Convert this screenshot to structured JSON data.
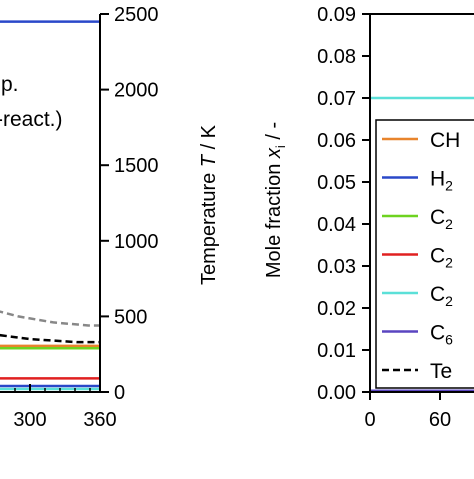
{
  "chart_data": [
    {
      "type": "line",
      "panel": "left (cropped)",
      "x_ticks": [
        "300",
        "360"
      ],
      "xlim": [
        0,
        360
      ],
      "right_ylabel_name": "Temperature",
      "right_ylabel_symbol": "T",
      "right_ylabel_unit": " / K",
      "right_ylim": [
        0,
        2500
      ],
      "right_y_ticks": [
        0,
        500,
        1000,
        1500,
        2000,
        2500
      ],
      "annotation_lines": [
        "p.",
        "-react.)"
      ],
      "series": [
        {
          "color": "#2a48c9",
          "style": "solid",
          "x": [
            0,
            360
          ],
          "y": [
            2450,
            2450
          ]
        },
        {
          "color": "#888888",
          "style": "dashed",
          "x": [
            200,
            230,
            260,
            290,
            320,
            350,
            360
          ],
          "y": [
            730,
            640,
            560,
            500,
            460,
            440,
            440
          ]
        },
        {
          "color": "#000000",
          "style": "dashed",
          "x": [
            200,
            250,
            300,
            340,
            360
          ],
          "y": [
            480,
            400,
            350,
            330,
            330
          ]
        },
        {
          "color": "#e8842c",
          "style": "solid",
          "x": [
            0,
            360
          ],
          "y": [
            305,
            305
          ]
        },
        {
          "color": "#6ed320",
          "style": "solid",
          "x": [
            0,
            360
          ],
          "y": [
            290,
            290
          ]
        },
        {
          "color": "#e02020",
          "style": "solid",
          "x": [
            0,
            360
          ],
          "y": [
            90,
            90
          ]
        },
        {
          "color": "#2a48c9",
          "style": "solid",
          "x": [
            0,
            360
          ],
          "y": [
            40,
            40
          ]
        },
        {
          "color": "#5be0d8",
          "style": "solid",
          "x": [
            0,
            360
          ],
          "y": [
            20,
            20
          ]
        }
      ]
    },
    {
      "type": "line",
      "panel": "right (cropped)",
      "ylabel_name": "Mole fraction ",
      "ylabel_symbol": "x",
      "ylabel_sub": "i",
      "ylabel_unit": " / -",
      "ylim": [
        0,
        0.09
      ],
      "y_ticks": [
        "0.00",
        "0.01",
        "0.02",
        "0.03",
        "0.04",
        "0.05",
        "0.06",
        "0.07",
        "0.08",
        "0.09"
      ],
      "x_ticks": [
        "0",
        "60"
      ],
      "legend_position": "right (cropped)",
      "legend": [
        {
          "label": "CH",
          "color": "#e8842c",
          "style": "solid"
        },
        {
          "label": "H",
          "sub": "2",
          "color": "#2a48c9",
          "style": "solid"
        },
        {
          "label": "C",
          "sub": "2",
          "color": "#6ed320",
          "style": "solid"
        },
        {
          "label": "C",
          "sub": "2",
          "color": "#e02020",
          "style": "solid"
        },
        {
          "label": "C",
          "sub": "2",
          "color": "#5be0d8",
          "style": "solid"
        },
        {
          "label": "C",
          "sub": "6",
          "color": "#5a45c0",
          "style": "solid"
        },
        {
          "label": "Te",
          "color": "#000000",
          "style": "dashed"
        }
      ],
      "series": [
        {
          "color": "#5be0d8",
          "style": "solid",
          "x": [
            0,
            110
          ],
          "y": [
            0.07,
            0.07
          ]
        },
        {
          "color": "#5a45c0",
          "style": "solid",
          "x": [
            0,
            110
          ],
          "y": [
            0.0003,
            0.0003
          ]
        }
      ]
    }
  ]
}
